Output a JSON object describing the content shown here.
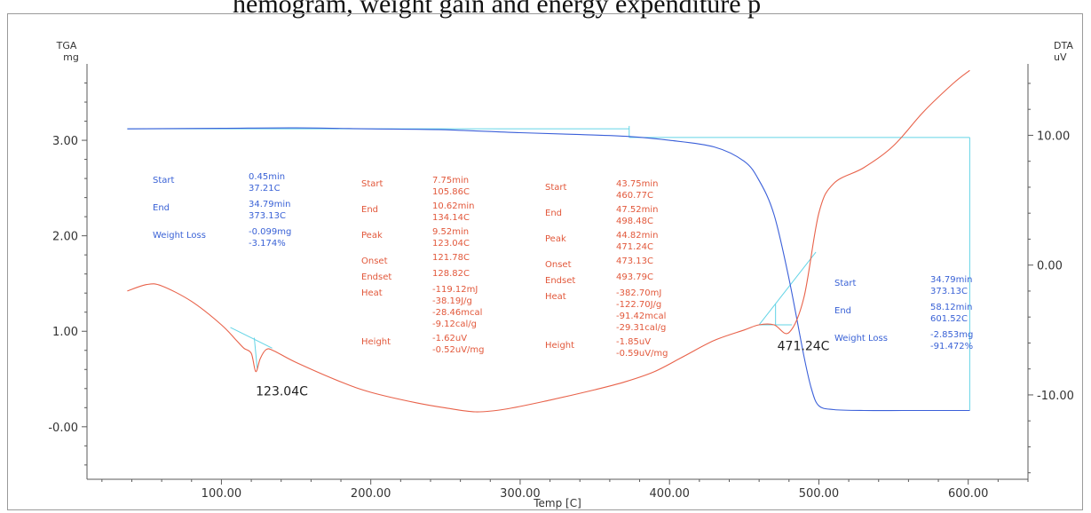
{
  "page_header": {
    "cropped_text": "hemogram, weight gain and energy expenditure p"
  },
  "colors": {
    "tga": "#3a5fd9",
    "dta": "#e8624a",
    "guide": "#63d4e6",
    "axis": "#5a5a5a",
    "label_blue": "#3a62d6",
    "label_red": "#e2583b"
  },
  "chart_data": {
    "type": "line",
    "title": "",
    "xlabel": "Temp  [C]",
    "y_left_label": [
      "TGA",
      "mg"
    ],
    "y_right_label": [
      "DTA",
      "uV"
    ],
    "xlim": [
      10,
      640
    ],
    "ylim_left": [
      -0.55,
      3.8
    ],
    "ylim_right": [
      -16.5,
      15.5
    ],
    "x_ticks": [
      {
        "v": 100,
        "label": "100.00"
      },
      {
        "v": 200,
        "label": "200.00"
      },
      {
        "v": 300,
        "label": "300.00"
      },
      {
        "v": 400,
        "label": "400.00"
      },
      {
        "v": 500,
        "label": "500.00"
      },
      {
        "v": 600,
        "label": "600.00"
      }
    ],
    "y_left_ticks": [
      {
        "v": 3.0,
        "label": "3.00"
      },
      {
        "v": 2.0,
        "label": "2.00"
      },
      {
        "v": 1.0,
        "label": "1.00"
      },
      {
        "v": 0.0,
        "label": "-0.00"
      }
    ],
    "y_right_ticks": [
      {
        "v": 10,
        "label": "10.00"
      },
      {
        "v": 0,
        "label": "0.00"
      },
      {
        "v": -10,
        "label": "-10.00"
      }
    ],
    "series": [
      {
        "name": "TGA",
        "axis": "left",
        "x": [
          37,
          100,
          150,
          200,
          250,
          300,
          340,
          373,
          400,
          430,
          450,
          460,
          470,
          480,
          490,
          495,
          500,
          510,
          530,
          560,
          601
        ],
        "y": [
          3.12,
          3.125,
          3.13,
          3.12,
          3.11,
          3.08,
          3.06,
          3.04,
          3.0,
          2.93,
          2.78,
          2.58,
          2.22,
          1.55,
          0.74,
          0.4,
          0.22,
          0.18,
          0.17,
          0.17,
          0.17
        ]
      },
      {
        "name": "DTA",
        "axis": "right",
        "x": [
          37,
          50,
          60,
          80,
          100,
          110,
          115,
          120,
          123,
          126,
          130,
          135,
          150,
          180,
          200,
          230,
          250,
          270,
          290,
          320,
          350,
          370,
          390,
          410,
          430,
          450,
          460,
          470,
          480,
          490,
          500,
          510,
          530,
          550,
          570,
          590,
          601
        ],
        "y": [
          -2.0,
          -1.5,
          -1.6,
          -2.8,
          -4.6,
          -5.8,
          -6.4,
          -6.8,
          -8.2,
          -7.2,
          -6.5,
          -6.6,
          -7.5,
          -9.0,
          -9.8,
          -10.6,
          -11.0,
          -11.3,
          -11.1,
          -10.4,
          -9.6,
          -9.0,
          -8.2,
          -7.0,
          -5.8,
          -5.0,
          -4.6,
          -4.6,
          -5.2,
          -2.5,
          4.0,
          6.3,
          7.5,
          9.2,
          11.8,
          14.0,
          15.0
        ]
      }
    ],
    "annotations": {
      "peak_labels": [
        {
          "text": "123.04C",
          "x": 123,
          "y_right": -9.5
        },
        {
          "text": "471.24C",
          "x": 471,
          "y_right": -6.0
        }
      ],
      "block1": {
        "color": "blue",
        "rows": [
          {
            "k": "Start",
            "v": [
              "0.45min",
              "37.21C"
            ]
          },
          {
            "k": "End",
            "v": [
              "34.79min",
              "373.13C"
            ]
          },
          {
            "k": "Weight Loss",
            "v": [
              "-0.099mg",
              "-3.174%"
            ]
          }
        ]
      },
      "block2": {
        "color": "red",
        "rows": [
          {
            "k": "Start",
            "v": [
              "7.75min",
              "105.86C"
            ]
          },
          {
            "k": "End",
            "v": [
              "10.62min",
              "134.14C"
            ]
          },
          {
            "k": "Peak",
            "v": [
              "9.52min",
              "123.04C"
            ]
          },
          {
            "k": "Onset",
            "v": [
              "121.78C"
            ]
          },
          {
            "k": "Endset",
            "v": [
              "128.82C"
            ]
          },
          {
            "k": "Heat",
            "v": [
              "-119.12mJ",
              "-38.19J/g",
              "-28.46mcal",
              "-9.12cal/g"
            ]
          },
          {
            "k": "Height",
            "v": [
              "-1.62uV",
              "-0.52uV/mg"
            ]
          }
        ]
      },
      "block3": {
        "color": "red",
        "rows": [
          {
            "k": "Start",
            "v": [
              "43.75min",
              "460.77C"
            ]
          },
          {
            "k": "End",
            "v": [
              "47.52min",
              "498.48C"
            ]
          },
          {
            "k": "Peak",
            "v": [
              "44.82min",
              "471.24C"
            ]
          },
          {
            "k": "Onset",
            "v": [
              "473.13C"
            ]
          },
          {
            "k": "Endset",
            "v": [
              "493.79C"
            ]
          },
          {
            "k": "Heat",
            "v": [
              "-382.70mJ",
              "-122.70J/g",
              "-91.42mcal",
              "-29.31cal/g"
            ]
          },
          {
            "k": "Height",
            "v": [
              "-1.85uV",
              "-0.59uV/mg"
            ]
          }
        ]
      },
      "block4": {
        "color": "blue",
        "rows": [
          {
            "k": "Start",
            "v": [
              "34.79min",
              "373.13C"
            ]
          },
          {
            "k": "End",
            "v": [
              "58.12min",
              "601.52C"
            ]
          },
          {
            "k": "Weight Loss",
            "v": [
              "-2.853mg",
              "-91.472%"
            ]
          }
        ]
      }
    }
  }
}
